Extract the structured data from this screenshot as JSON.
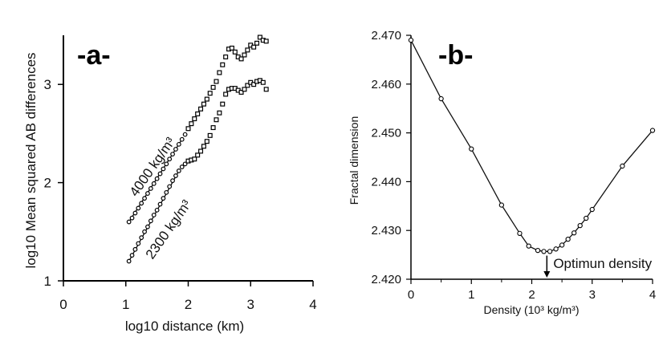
{
  "chart_data": [
    {
      "type": "scatter",
      "panel_label": "-a-",
      "xlabel": "log10 distance (km)",
      "ylabel": "log10 Mean squared AB differences",
      "xlim": [
        0,
        4
      ],
      "ylim": [
        1,
        3.5
      ],
      "x_ticks": [
        "0",
        "1",
        "2",
        "3",
        "4"
      ],
      "y_ticks": [
        "1",
        "2",
        "3"
      ],
      "series": [
        {
          "name": "4000 kg/m³",
          "line_x": [
            1.05,
            1.92
          ],
          "line_y": [
            1.6,
            2.46
          ],
          "points": [
            [
              1.05,
              1.6
            ],
            [
              1.1,
              1.64
            ],
            [
              1.15,
              1.69
            ],
            [
              1.2,
              1.74
            ],
            [
              1.25,
              1.79
            ],
            [
              1.3,
              1.84
            ],
            [
              1.35,
              1.89
            ],
            [
              1.4,
              1.94
            ],
            [
              1.45,
              1.99
            ],
            [
              1.5,
              2.04
            ],
            [
              1.55,
              2.09
            ],
            [
              1.6,
              2.14
            ],
            [
              1.65,
              2.19
            ],
            [
              1.7,
              2.24
            ],
            [
              1.75,
              2.29
            ],
            [
              1.8,
              2.34
            ],
            [
              1.85,
              2.39
            ],
            [
              1.9,
              2.44
            ],
            [
              1.95,
              2.49
            ],
            [
              2.0,
              2.55
            ],
            [
              2.05,
              2.6
            ],
            [
              2.1,
              2.65
            ],
            [
              2.15,
              2.7
            ],
            [
              2.2,
              2.75
            ],
            [
              2.25,
              2.8
            ],
            [
              2.3,
              2.85
            ],
            [
              2.35,
              2.91
            ],
            [
              2.4,
              2.97
            ],
            [
              2.45,
              3.03
            ],
            [
              2.5,
              3.12
            ],
            [
              2.55,
              3.2
            ],
            [
              2.6,
              3.28
            ],
            [
              2.65,
              3.36
            ],
            [
              2.7,
              3.37
            ],
            [
              2.75,
              3.33
            ],
            [
              2.8,
              3.28
            ],
            [
              2.85,
              3.26
            ],
            [
              2.9,
              3.3
            ],
            [
              2.95,
              3.35
            ],
            [
              3.0,
              3.4
            ],
            [
              3.05,
              3.38
            ],
            [
              3.1,
              3.42
            ],
            [
              3.15,
              3.48
            ],
            [
              3.2,
              3.45
            ],
            [
              3.25,
              3.44
            ]
          ]
        },
        {
          "name": "2300 kg/m³",
          "line_x": [
            1.05,
            1.85
          ],
          "line_y": [
            1.2,
            2.12
          ],
          "points": [
            [
              1.05,
              1.2
            ],
            [
              1.1,
              1.26
            ],
            [
              1.15,
              1.32
            ],
            [
              1.2,
              1.38
            ],
            [
              1.25,
              1.44
            ],
            [
              1.3,
              1.5
            ],
            [
              1.35,
              1.55
            ],
            [
              1.4,
              1.61
            ],
            [
              1.45,
              1.67
            ],
            [
              1.5,
              1.72
            ],
            [
              1.55,
              1.78
            ],
            [
              1.6,
              1.84
            ],
            [
              1.65,
              1.9
            ],
            [
              1.7,
              1.96
            ],
            [
              1.75,
              2.02
            ],
            [
              1.8,
              2.07
            ],
            [
              1.85,
              2.12
            ],
            [
              1.9,
              2.16
            ],
            [
              1.95,
              2.19
            ],
            [
              2.0,
              2.22
            ],
            [
              2.05,
              2.23
            ],
            [
              2.1,
              2.24
            ],
            [
              2.15,
              2.28
            ],
            [
              2.2,
              2.32
            ],
            [
              2.25,
              2.37
            ],
            [
              2.3,
              2.42
            ],
            [
              2.35,
              2.48
            ],
            [
              2.4,
              2.56
            ],
            [
              2.45,
              2.64
            ],
            [
              2.5,
              2.71
            ],
            [
              2.55,
              2.8
            ],
            [
              2.6,
              2.9
            ],
            [
              2.65,
              2.95
            ],
            [
              2.7,
              2.96
            ],
            [
              2.75,
              2.96
            ],
            [
              2.8,
              2.94
            ],
            [
              2.85,
              2.92
            ],
            [
              2.9,
              2.95
            ],
            [
              2.95,
              2.99
            ],
            [
              3.0,
              3.02
            ],
            [
              3.05,
              3.0
            ],
            [
              3.1,
              3.03
            ],
            [
              3.15,
              3.04
            ],
            [
              3.2,
              3.02
            ],
            [
              3.25,
              2.95
            ]
          ]
        }
      ],
      "annotations": [
        "4000 kg/m³",
        "2300 kg/m³"
      ]
    },
    {
      "type": "line",
      "panel_label": "-b-",
      "xlabel": "Density (10³ kg/m³)",
      "ylabel": "Fractal dimension",
      "xlim": [
        0,
        4
      ],
      "ylim": [
        2.42,
        2.47
      ],
      "x_ticks": [
        "0",
        "1",
        "2",
        "3",
        "4"
      ],
      "y_ticks": [
        "2.420",
        "2.430",
        "2.440",
        "2.450",
        "2.460",
        "2.470"
      ],
      "x": [
        0,
        0.5,
        1.0,
        1.5,
        1.8,
        1.95,
        2.1,
        2.2,
        2.3,
        2.4,
        2.5,
        2.6,
        2.7,
        2.8,
        2.9,
        3.0,
        3.5,
        4.0
      ],
      "y": [
        2.469,
        2.457,
        2.4467,
        2.4352,
        2.4294,
        2.4268,
        2.4259,
        2.4257,
        2.4257,
        2.4262,
        2.427,
        2.4282,
        2.4295,
        2.431,
        2.4325,
        2.4343,
        2.4432,
        2.4505
      ],
      "annotation": "Optimun density",
      "annotation_x": 2.25
    }
  ]
}
